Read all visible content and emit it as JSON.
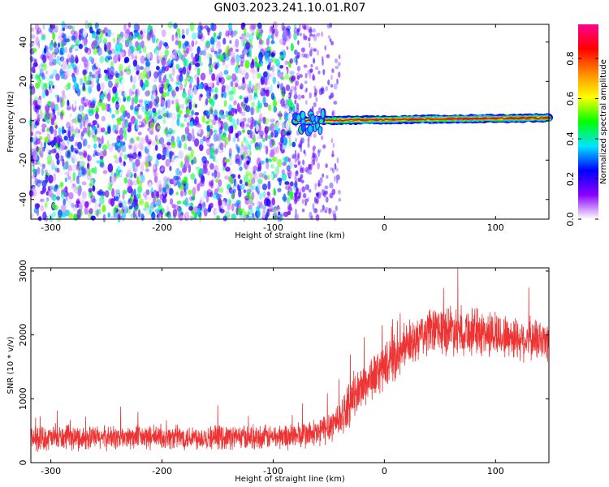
{
  "title": "GN03.2023.241.10.01.R07",
  "chart_data": [
    {
      "type": "heatmap",
      "xlabel": "Height of straight line (km)",
      "ylabel": "Frequency (Hz)",
      "xlim": [
        -318,
        148
      ],
      "ylim": [
        -50,
        49
      ],
      "xticks": [
        -300,
        -200,
        -100,
        0,
        100
      ],
      "yticks": [
        -40,
        -20,
        0,
        20,
        40
      ],
      "colorbar": {
        "label": "Normalized spectral amplitude",
        "range": [
          0.0,
          0.97
        ],
        "ticks": [
          0.0,
          0.2,
          0.4,
          0.6,
          0.8
        ],
        "tick_labels": [
          "0.0",
          "0.2",
          "0.4",
          "0.6",
          "0.8"
        ],
        "colormap": [
          "#ffffff",
          "#8a00ff",
          "#0000ff",
          "#00e5ff",
          "#00ff00",
          "#ffff00",
          "#ff8800",
          "#ff0000",
          "#ff0090"
        ]
      },
      "regions": {
        "noise": {
          "x": [
            -318,
            -80
          ],
          "y": [
            -50,
            49
          ],
          "amplitude": [
            0.0,
            0.25
          ]
        },
        "sparse_noise": {
          "x": [
            -80,
            -40
          ],
          "y": [
            -50,
            49
          ],
          "amplitude": [
            0.0,
            0.15
          ]
        },
        "signal_line": {
          "x": [
            -80,
            148
          ],
          "center_frequency_start": 0,
          "center_frequency_end": 1.5,
          "amplitude": [
            0.2,
            0.95
          ]
        }
      }
    },
    {
      "type": "line",
      "xlabel": "Height of straight line (km)",
      "ylabel": "SNR (10 * v/v)",
      "xlim": [
        -318,
        148
      ],
      "ylim": [
        0,
        3050
      ],
      "xticks": [
        -300,
        -200,
        -100,
        0,
        100
      ],
      "yticks": [
        0,
        1000,
        2000,
        3000
      ],
      "color": "#ee3333",
      "series": [
        {
          "x": [
            -318,
            -250,
            -150,
            -100,
            -60,
            -40,
            -20,
            0,
            20,
            40,
            60,
            80,
            100,
            120,
            148
          ],
          "values": [
            380,
            390,
            400,
            400,
            450,
            700,
            1200,
            1500,
            1800,
            2050,
            2100,
            2050,
            2000,
            1950,
            1900
          ],
          "spread": [
            200,
            200,
            200,
            200,
            250,
            320,
            380,
            380,
            350,
            380,
            420,
            400,
            380,
            360,
            350
          ]
        }
      ]
    }
  ]
}
